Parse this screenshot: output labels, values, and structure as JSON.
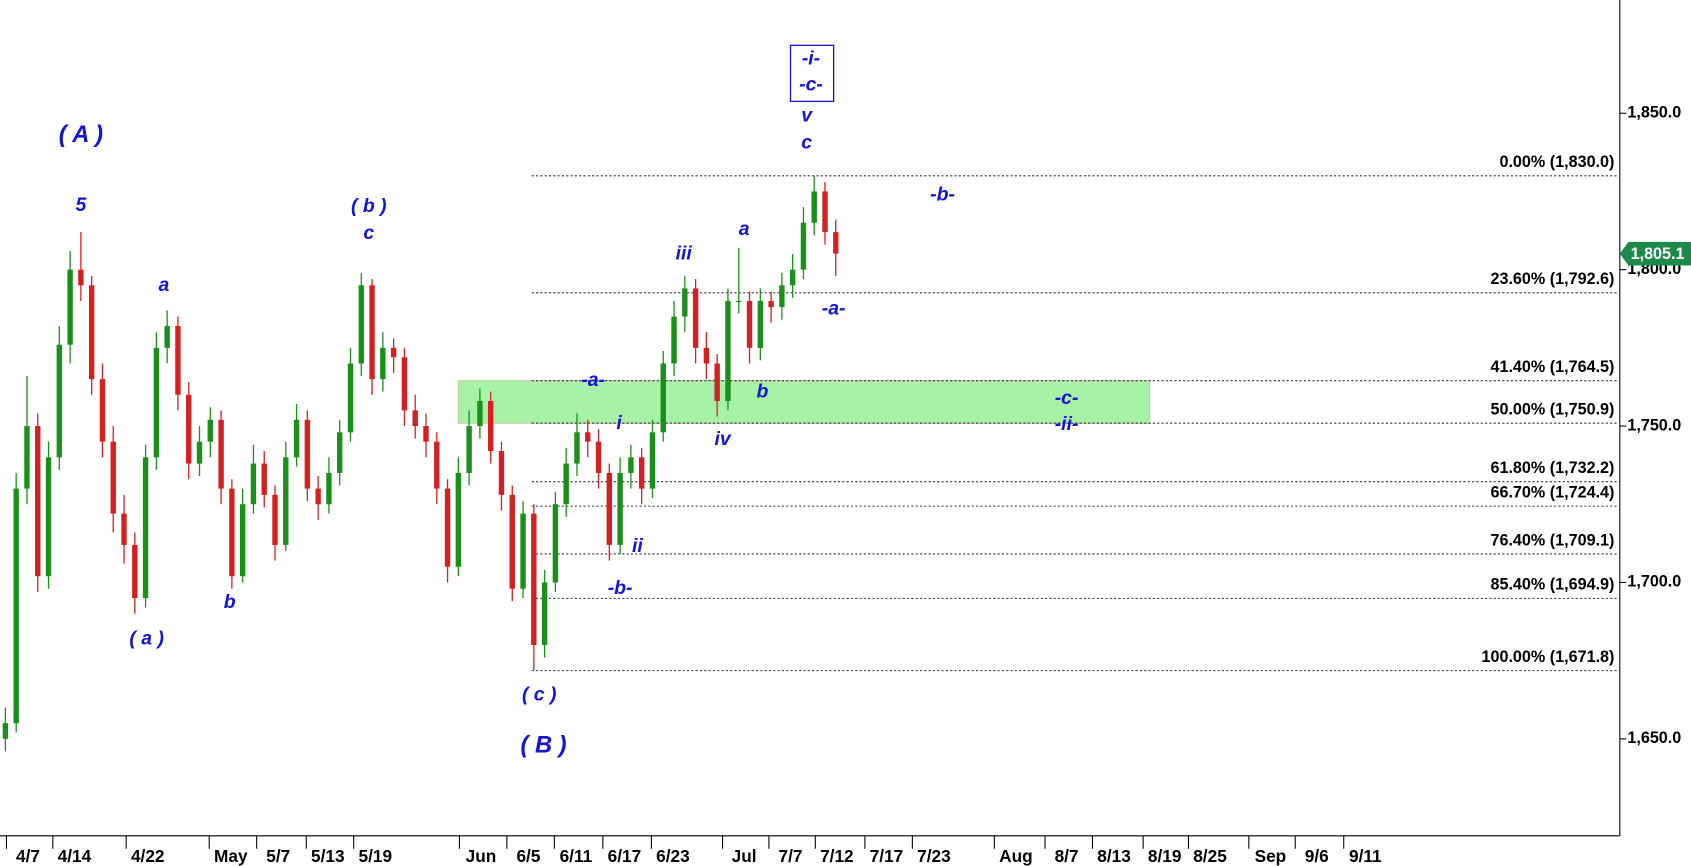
{
  "chart_data": {
    "type": "candlestick",
    "xlim": [
      0,
      150.2
    ],
    "ylim": [
      1619,
      1886.2
    ],
    "yticks": [
      {
        "value": 1650,
        "label": "1,650.0"
      },
      {
        "value": 1700,
        "label": "1,700.0"
      },
      {
        "value": 1750,
        "label": "1,750.0"
      },
      {
        "value": 1800,
        "label": "1,800.0"
      },
      {
        "value": 1850,
        "label": "1,850.0"
      }
    ],
    "xticks": [
      {
        "value": 0.6,
        "label": "4/7"
      },
      {
        "value": 4.9,
        "label": "4/14"
      },
      {
        "value": 11.7,
        "label": "4/22"
      },
      {
        "value": 19.4,
        "label": "May"
      },
      {
        "value": 23.8,
        "label": "5/7"
      },
      {
        "value": 28.4,
        "label": "5/13"
      },
      {
        "value": 32.8,
        "label": "5/19"
      },
      {
        "value": 42.6,
        "label": "Jun"
      },
      {
        "value": 47.0,
        "label": "6/5"
      },
      {
        "value": 51.4,
        "label": "6/11"
      },
      {
        "value": 55.9,
        "label": "6/17"
      },
      {
        "value": 60.4,
        "label": "6/23"
      },
      {
        "value": 67.0,
        "label": "Jul"
      },
      {
        "value": 71.3,
        "label": "7/7"
      },
      {
        "value": 75.6,
        "label": "7/12"
      },
      {
        "value": 80.2,
        "label": "7/17"
      },
      {
        "value": 84.6,
        "label": "7/23"
      },
      {
        "value": 92.2,
        "label": "Aug"
      },
      {
        "value": 96.9,
        "label": "8/7"
      },
      {
        "value": 101.3,
        "label": "8/13"
      },
      {
        "value": 106.0,
        "label": "8/19"
      },
      {
        "value": 110.2,
        "label": "8/25"
      },
      {
        "value": 115.8,
        "label": "Sep"
      },
      {
        "value": 120.1,
        "label": "9/6"
      },
      {
        "value": 124.6,
        "label": "9/11"
      }
    ],
    "up_color": "#1a8f1a",
    "down_color": "#d42020",
    "x": [
      0.5,
      1.5,
      2.5,
      3.5,
      4.5,
      5.5,
      6.5,
      7.5,
      8.5,
      9.5,
      10.5,
      11.5,
      12.5,
      13.5,
      14.5,
      15.5,
      16.5,
      17.5,
      18.5,
      19.5,
      20.5,
      21.5,
      22.5,
      23.5,
      24.5,
      25.5,
      26.5,
      27.5,
      28.5,
      29.5,
      30.5,
      31.5,
      32.5,
      33.5,
      34.5,
      35.5,
      36.5,
      37.5,
      38.5,
      39.5,
      40.5,
      41.5,
      42.5,
      43.5,
      44.5,
      45.5,
      46.5,
      47.5,
      48.5,
      49.5,
      50.5,
      51.5,
      52.5,
      53.5,
      54.5,
      55.5,
      56.5,
      57.5,
      58.5,
      59.5,
      60.5,
      61.5,
      62.5,
      63.5,
      64.5,
      65.5,
      66.5,
      67.5,
      68.5,
      69.5,
      70.5,
      71.5,
      72.5,
      73.5,
      74.5,
      75.5,
      76.5,
      77.5
    ],
    "open": [
      1650,
      1655,
      1730,
      1750,
      1702,
      1740,
      1776,
      1800,
      1795,
      1765,
      1745,
      1722,
      1712,
      1695,
      1740,
      1775,
      1782,
      1760,
      1738,
      1745,
      1752,
      1730,
      1702,
      1725,
      1738,
      1728,
      1712,
      1740,
      1752,
      1730,
      1725,
      1735,
      1748,
      1770,
      1795,
      1765,
      1775,
      1772,
      1755,
      1750,
      1745,
      1730,
      1705,
      1735,
      1750,
      1758,
      1742,
      1728,
      1698,
      1722,
      1680,
      1700,
      1725,
      1738,
      1748,
      1745,
      1735,
      1712,
      1735,
      1740,
      1730,
      1748,
      1770,
      1785,
      1794,
      1775,
      1770,
      1758,
      1790,
      1790,
      1775,
      1790,
      1788,
      1795,
      1800,
      1815,
      1825,
      1812
    ],
    "high": [
      1660,
      1735,
      1766,
      1754,
      1745,
      1782,
      1806,
      1812,
      1798,
      1770,
      1750,
      1728,
      1716,
      1744,
      1780,
      1787,
      1785,
      1764,
      1750,
      1756,
      1755,
      1733,
      1730,
      1744,
      1742,
      1731,
      1745,
      1757,
      1755,
      1734,
      1740,
      1752,
      1775,
      1799,
      1797,
      1780,
      1778,
      1775,
      1760,
      1754,
      1748,
      1733,
      1740,
      1755,
      1762,
      1761,
      1745,
      1731,
      1726,
      1725,
      1704,
      1729,
      1743,
      1754,
      1752,
      1749,
      1738,
      1740,
      1744,
      1743,
      1752,
      1774,
      1790,
      1798,
      1797,
      1780,
      1773,
      1794,
      1807,
      1793,
      1794,
      1793,
      1799,
      1805,
      1820,
      1830,
      1828,
      1816
    ],
    "low": [
      1646,
      1652,
      1725,
      1697,
      1698,
      1736,
      1770,
      1790,
      1760,
      1740,
      1716,
      1706,
      1690,
      1692,
      1736,
      1770,
      1755,
      1733,
      1734,
      1740,
      1725,
      1698,
      1700,
      1722,
      1724,
      1707,
      1710,
      1737,
      1726,
      1720,
      1722,
      1731,
      1745,
      1766,
      1760,
      1761,
      1767,
      1750,
      1746,
      1740,
      1725,
      1700,
      1702,
      1731,
      1746,
      1738,
      1723,
      1694,
      1695,
      1671.8,
      1676,
      1697,
      1721,
      1734,
      1740,
      1730,
      1707,
      1709,
      1730,
      1725,
      1727,
      1745,
      1766,
      1780,
      1770,
      1765,
      1753,
      1755,
      1786,
      1770,
      1771,
      1783,
      1784,
      1791,
      1797,
      1811,
      1808,
      1798
    ],
    "close": [
      1655,
      1730,
      1750,
      1702,
      1740,
      1776,
      1800,
      1795,
      1765,
      1745,
      1722,
      1712,
      1695,
      1740,
      1775,
      1782,
      1760,
      1738,
      1745,
      1752,
      1730,
      1702,
      1725,
      1738,
      1728,
      1712,
      1740,
      1752,
      1730,
      1725,
      1735,
      1748,
      1770,
      1795,
      1765,
      1775,
      1772,
      1755,
      1750,
      1745,
      1730,
      1705,
      1735,
      1750,
      1758,
      1742,
      1728,
      1698,
      1722,
      1680,
      1700,
      1725,
      1738,
      1748,
      1745,
      1735,
      1712,
      1735,
      1740,
      1730,
      1748,
      1770,
      1785,
      1794,
      1775,
      1770,
      1758,
      1790,
      1790,
      1775,
      1790,
      1788,
      1795,
      1800,
      1815,
      1825,
      1812,
      1805.1
    ],
    "last_price": {
      "value": 1805.1,
      "label": "1,805.1",
      "color": "#1e8a4a"
    },
    "levels": [
      {
        "value": 1830.0,
        "label": "0.00% (1,830.0)"
      },
      {
        "value": 1792.6,
        "label": "23.60% (1,792.6)"
      },
      {
        "value": 1764.5,
        "label": "41.40% (1,764.5)"
      },
      {
        "value": 1750.9,
        "label": "50.00% (1,750.9)"
      },
      {
        "value": 1732.2,
        "label": "61.80% (1,732.2)"
      },
      {
        "value": 1724.4,
        "label": "66.70% (1,724.4)"
      },
      {
        "value": 1709.1,
        "label": "76.40% (1,709.1)"
      },
      {
        "value": 1694.9,
        "label": "85.40% (1,694.9)"
      },
      {
        "value": 1671.8,
        "label": "100.00% (1,671.8)"
      }
    ],
    "zone": {
      "ymin": 1750.9,
      "ymax": 1764.5,
      "xmin": 42.5,
      "xmax": 106.6,
      "color": "#a6f2a6"
    },
    "annotations": [
      "( A )",
      "5",
      "a",
      "( a )",
      "b",
      "( b )",
      "c",
      "( c )",
      "( B )",
      "-a-",
      "i",
      "ii",
      "-b-",
      "iii",
      "iv",
      "a",
      "b",
      "-a-",
      "-b-",
      "v",
      "c",
      "-i-",
      "-c-",
      "-c-",
      "-ii-"
    ],
    "annotation_color": "#1414d2"
  }
}
